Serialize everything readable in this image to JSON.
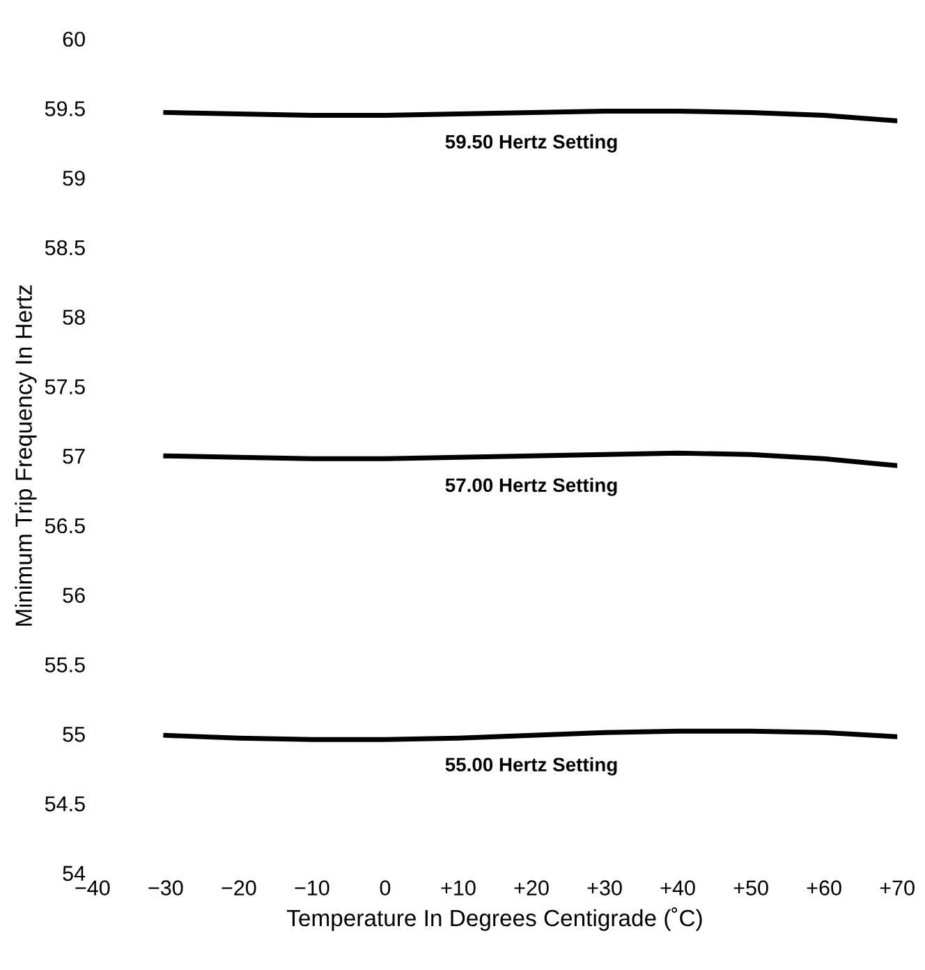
{
  "chart_data": {
    "type": "line",
    "xlabel": "Temperature In Degrees Centigrade (˚C)",
    "ylabel": "Minimum Trip Frequency In Hertz",
    "x": [
      -30,
      -20,
      -10,
      0,
      10,
      20,
      30,
      40,
      50,
      60,
      70
    ],
    "series": [
      {
        "color": "#000000",
        "values": [
          59.47,
          59.46,
          59.45,
          59.45,
          59.46,
          59.47,
          59.48,
          59.48,
          59.47,
          59.45,
          59.41
        ]
      },
      {
        "color": "#000000",
        "values": [
          57.0,
          56.99,
          56.98,
          56.98,
          56.99,
          57.0,
          57.01,
          57.02,
          57.01,
          56.98,
          56.93
        ]
      },
      {
        "color": "#000000",
        "values": [
          54.99,
          54.97,
          54.96,
          54.96,
          54.97,
          54.99,
          55.01,
          55.02,
          55.02,
          55.01,
          54.98
        ]
      }
    ],
    "annotations": [
      "59.50 Hertz Setting",
      "57.00 Hertz Setting",
      "55.00 Hertz Setting"
    ],
    "xlim": [
      -40,
      70
    ],
    "xticks": [
      {
        "value": -40,
        "label": "−40"
      },
      {
        "value": -30,
        "label": "−30"
      },
      {
        "value": -20,
        "label": "−20"
      },
      {
        "value": -10,
        "label": "−10"
      },
      0,
      {
        "value": 10,
        "label": "+10"
      },
      {
        "value": 20,
        "label": "+20"
      },
      {
        "value": 30,
        "label": "+30"
      },
      {
        "value": 40,
        "label": "+40"
      },
      {
        "value": 50,
        "label": "+50"
      },
      {
        "value": 60,
        "label": "+60"
      },
      {
        "value": 70,
        "label": "+70"
      }
    ],
    "ylim": [
      54,
      60
    ],
    "yticks": [
      54,
      54.5,
      55,
      55.5,
      56,
      56.5,
      57,
      57.5,
      58,
      58.5,
      59,
      59.5,
      60
    ],
    "grid": false,
    "legend": false,
    "marker": "none",
    "line_style": "solid"
  }
}
